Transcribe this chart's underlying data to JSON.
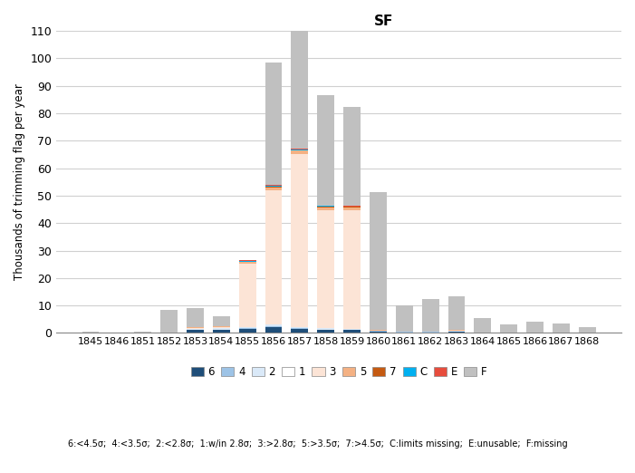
{
  "years": [
    1845,
    1846,
    1851,
    1852,
    1853,
    1854,
    1855,
    1856,
    1857,
    1858,
    1859,
    1860,
    1861,
    1862,
    1863,
    1864,
    1865,
    1866,
    1867,
    1868
  ],
  "title": "SF",
  "ylabel": "Thousands of trimming flag per year",
  "ylim": [
    0,
    110
  ],
  "yticks": [
    0,
    10,
    20,
    30,
    40,
    50,
    60,
    70,
    80,
    90,
    100,
    110
  ],
  "segments": {
    "6": [
      0,
      0,
      0,
      0,
      1.0,
      1.0,
      1.5,
      2.0,
      1.5,
      1.0,
      1.0,
      0.5,
      0.3,
      0.3,
      0.5,
      0.0,
      0.0,
      0.0,
      0.0,
      0.0
    ],
    "4": [
      0,
      0,
      0,
      0,
      0.3,
      0.3,
      0.3,
      0.5,
      0.3,
      0.3,
      0.3,
      0.2,
      0.1,
      0.1,
      0.1,
      0.0,
      0.0,
      0.0,
      0.0,
      0.0
    ],
    "2": [
      0,
      0,
      0,
      0,
      0.2,
      0.5,
      0.5,
      0.5,
      0.5,
      0.5,
      0.3,
      0.2,
      0.1,
      0.1,
      0.1,
      0.0,
      0.0,
      0.0,
      0.0,
      0.0
    ],
    "1": [
      0,
      0,
      0,
      0,
      0,
      0,
      0,
      0,
      0,
      0,
      0,
      0,
      0,
      0,
      0,
      0,
      0,
      0,
      0,
      0
    ],
    "3": [
      0,
      0,
      0,
      0,
      0.2,
      0.5,
      23.0,
      49.0,
      63.0,
      43.0,
      43.0,
      0.0,
      0.0,
      0.0,
      0.0,
      0.0,
      0.0,
      0.0,
      0.0,
      0.0
    ],
    "5": [
      0,
      0,
      0,
      0,
      0.3,
      0.3,
      0.5,
      1.0,
      1.0,
      1.0,
      1.0,
      0.2,
      0.0,
      0.0,
      0.3,
      0.0,
      0.0,
      0.0,
      0.0,
      0.0
    ],
    "7": [
      0,
      0,
      0,
      0,
      0,
      0,
      0.2,
      0.2,
      0.2,
      0.2,
      0.3,
      0.0,
      0.0,
      0.0,
      0.0,
      0.0,
      0.0,
      0.0,
      0.0,
      0.0
    ],
    "C": [
      0,
      0,
      0,
      0,
      0,
      0,
      0.3,
      0.5,
      0.4,
      0.3,
      0.2,
      0.0,
      0.0,
      0.0,
      0.0,
      0.0,
      0.0,
      0.0,
      0.0,
      0.0
    ],
    "E": [
      0,
      0,
      0,
      0,
      0,
      0,
      0.2,
      0.3,
      0.1,
      0.2,
      0.1,
      0.1,
      0.0,
      0.0,
      0.0,
      0.0,
      0.0,
      0.0,
      0.0,
      0.0
    ],
    "F": [
      0.5,
      0.3,
      0.5,
      8.5,
      7.0,
      3.5,
      0.0,
      44.5,
      43.0,
      40.0,
      36.0,
      50.0,
      9.5,
      12.0,
      12.5,
      5.5,
      3.0,
      4.0,
      3.5,
      2.0
    ]
  },
  "colors": {
    "6": "#1f4e79",
    "4": "#9dc3e6",
    "2": "#dae9f8",
    "1": "#ffffff",
    "3": "#fce4d6",
    "5": "#f4b183",
    "7": "#c55a11",
    "C": "#00b0f0",
    "E": "#e74c3c",
    "F": "#c0c0c0"
  },
  "legend_labels": {
    "6": "6",
    "4": "4",
    "2": "2",
    "1": "1",
    "3": "3",
    "5": "5",
    "7": "7",
    "C": "C",
    "E": "E",
    "F": "F"
  },
  "note": "6:<4.5σ;  4:<3.5σ;  2:<2.8σ;  1:w/in 2.8σ;  3:>2.8σ;  5:>3.5σ;  7:>4.5σ;  C:limits missing;  E:unusable;  F:missing"
}
